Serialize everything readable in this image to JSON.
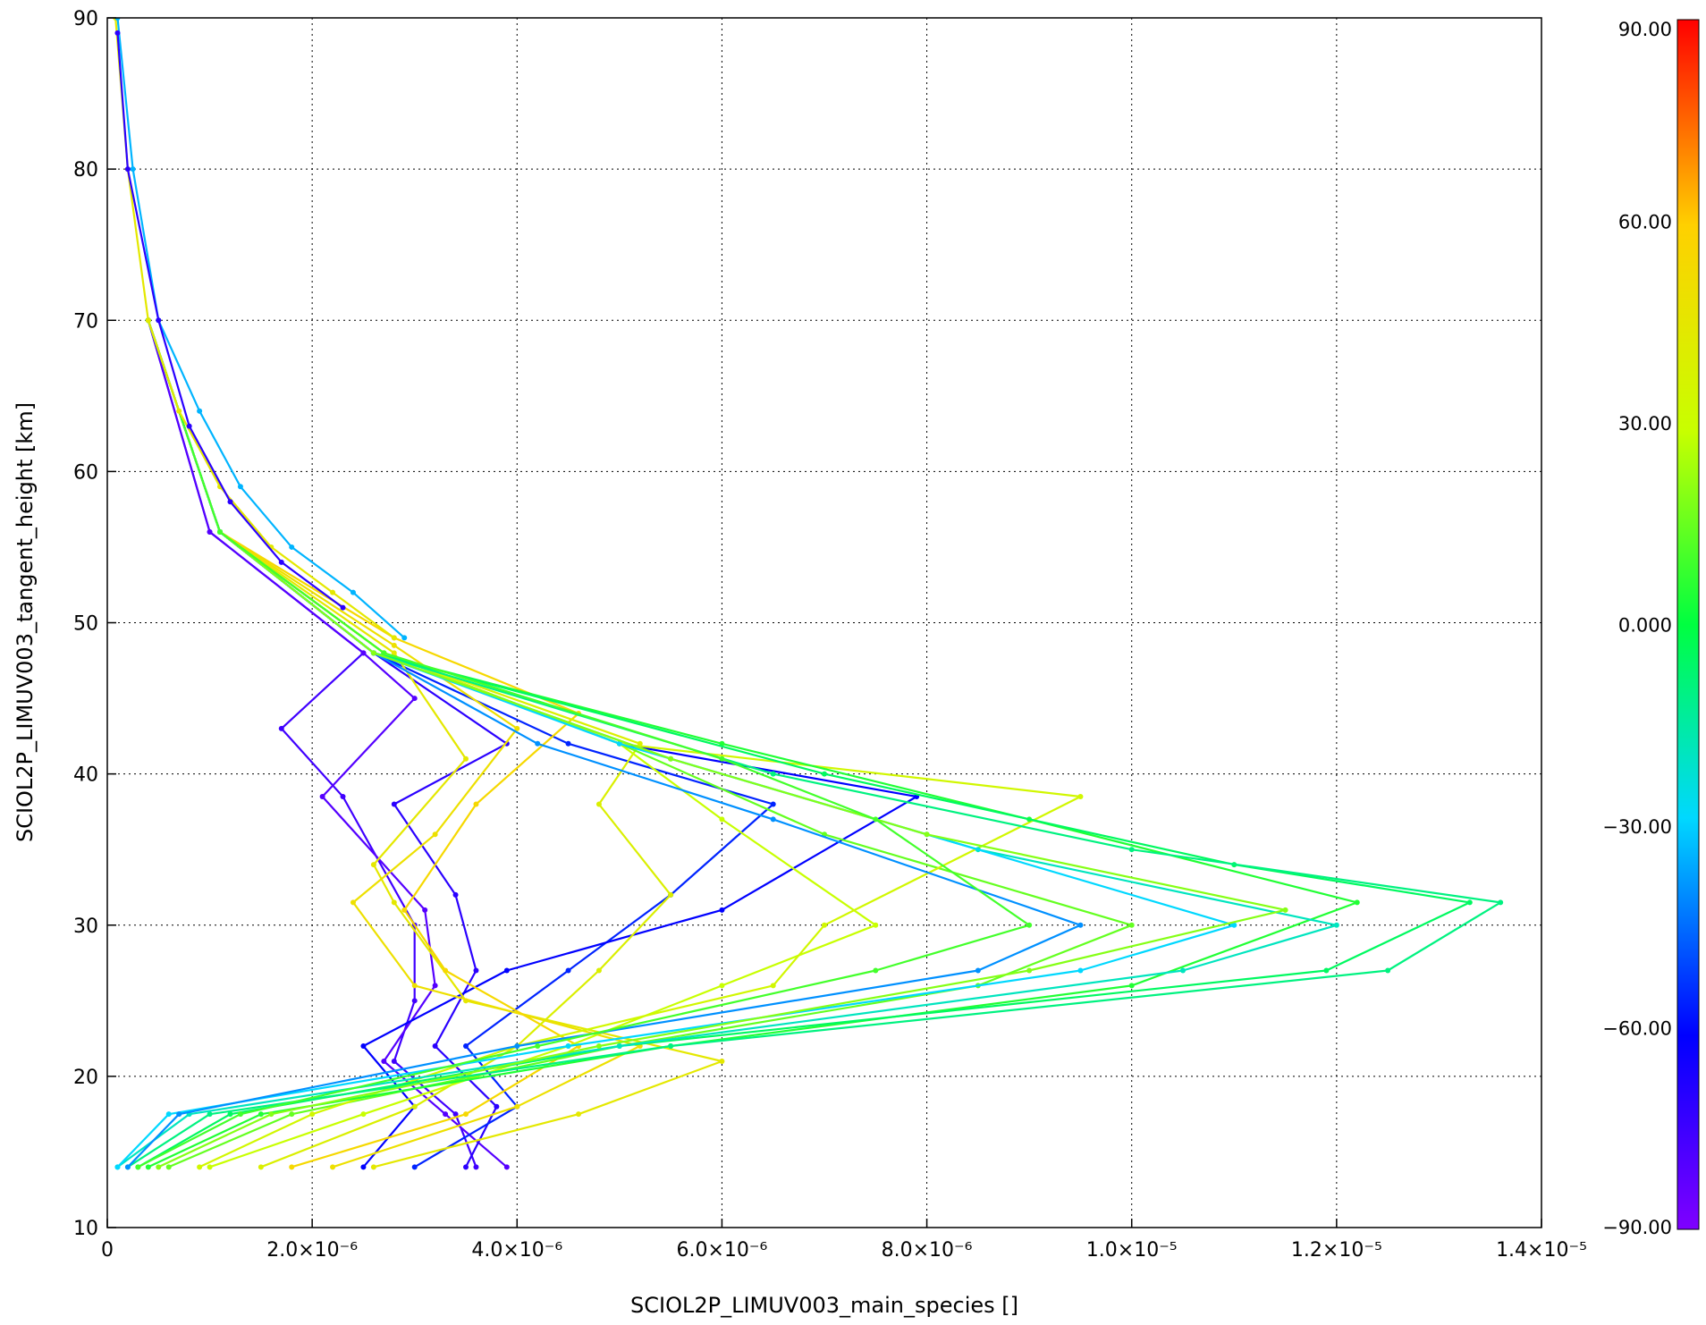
{
  "chart_data": {
    "type": "line",
    "title": "",
    "xlabel": "SCIOL2P_LIMUV003_main_species []",
    "ylabel": "SCIOL2P_LIMUV003_tangent_height [km]",
    "xlim": [
      0,
      1.4e-05
    ],
    "ylim": [
      10,
      90
    ],
    "grid": true,
    "x_tick_labels": [
      "0",
      "2.0×10⁻⁶",
      "4.0×10⁻⁶",
      "6.0×10⁻⁶",
      "8.0×10⁻⁶",
      "1.0×10⁻⁵",
      "1.2×10⁻⁵",
      "1.4×10⁻⁵"
    ],
    "x_ticks": [
      0,
      2e-06,
      4e-06,
      6e-06,
      8e-06,
      1e-05,
      1.2e-05,
      1.4e-05
    ],
    "y_tick_labels": [
      "10",
      "20",
      "30",
      "40",
      "50",
      "60",
      "70",
      "80",
      "90"
    ],
    "y_ticks": [
      10,
      20,
      30,
      40,
      50,
      60,
      70,
      80,
      90
    ],
    "colorbar": {
      "min": -90,
      "max": 90,
      "tick_values": [
        90,
        60,
        30,
        0,
        -30,
        -60,
        -90
      ],
      "tick_labels": [
        "90.00",
        "60.00",
        "30.00",
        "0.000",
        "−30.00",
        "−60.00",
        "−90.00"
      ],
      "colormap": [
        "#7f00ff",
        "#0000ff",
        "#00d8ff",
        "#00ff40",
        "#c8ff00",
        "#ffd000",
        "#ff0000"
      ]
    },
    "series": [
      {
        "color_value": -75,
        "x": [
          3.6e-06,
          3.4e-06,
          2.8e-06,
          3e-06,
          3e-06,
          2.3e-06,
          1.7e-06,
          2.5e-06,
          1e-06,
          4e-07
        ],
        "y": [
          14,
          17.5,
          21,
          25,
          30,
          38.5,
          43,
          48,
          56,
          70
        ]
      },
      {
        "color_value": -80,
        "x": [
          3.9e-06,
          3.3e-06,
          2.7e-06,
          3.2e-06,
          3.1e-06,
          2.1e-06,
          3e-06,
          2.5e-06,
          1e-06,
          4e-07
        ],
        "y": [
          14,
          17.5,
          21,
          26,
          31,
          38.5,
          45,
          48,
          56,
          70
        ]
      },
      {
        "color_value": -70,
        "x": [
          3.5e-06,
          3.8e-06,
          3.2e-06,
          3.6e-06,
          3.4e-06,
          2.8e-06,
          3.9e-06,
          2.6e-06,
          1.1e-06,
          4e-07
        ],
        "y": [
          14,
          18,
          22,
          27,
          32,
          38,
          42,
          48,
          56,
          70
        ]
      },
      {
        "color_value": -55,
        "x": [
          3e-06,
          4e-06,
          3.5e-06,
          4.5e-06,
          5.5e-06,
          6.5e-06,
          4.5e-06,
          2.6e-06,
          1.1e-06,
          4e-07
        ],
        "y": [
          14,
          18,
          22,
          27,
          32,
          38,
          42,
          48,
          56,
          70
        ]
      },
      {
        "color_value": -60,
        "x": [
          2.5e-06,
          3e-06,
          2.5e-06,
          3.9e-06,
          6e-06,
          7.9e-06,
          5e-06,
          2.7e-06,
          1.1e-06,
          4e-07
        ],
        "y": [
          14,
          18,
          22,
          27,
          31,
          38.5,
          42,
          48,
          56,
          70
        ]
      },
      {
        "color_value": 45,
        "x": [
          2.6e-06,
          4.6e-06,
          6e-06,
          3.5e-06,
          2.8e-06,
          2.6e-06,
          3.5e-06,
          2.8e-06,
          1.1e-06,
          4e-07
        ],
        "y": [
          14,
          17.5,
          21,
          25,
          31.5,
          34,
          41,
          48,
          56,
          70
        ]
      },
      {
        "color_value": 50,
        "x": [
          2.2e-06,
          4e-06,
          5.2e-06,
          3e-06,
          2.4e-06,
          3.2e-06,
          4e-06,
          2.8e-06,
          1.1e-06,
          4e-07
        ],
        "y": [
          14,
          18,
          22,
          26,
          31.5,
          36,
          43,
          48.5,
          56,
          70
        ]
      },
      {
        "color_value": 55,
        "x": [
          1.8e-06,
          3.5e-06,
          4.6e-06,
          3.3e-06,
          2.9e-06,
          3.6e-06,
          4.6e-06,
          2.8e-06,
          1.1e-06,
          4e-07
        ],
        "y": [
          14,
          17.5,
          22,
          27,
          31,
          38,
          44,
          49,
          56,
          70
        ]
      },
      {
        "color_value": 40,
        "x": [
          1.5e-06,
          3e-06,
          4e-06,
          4.8e-06,
          5.5e-06,
          4.8e-06,
          5.2e-06,
          2.7e-06,
          1.1e-06,
          4e-07
        ],
        "y": [
          14,
          18,
          22,
          27,
          32,
          38,
          42,
          48,
          56,
          70
        ]
      },
      {
        "color_value": 30,
        "x": [
          1e-06,
          2.5e-06,
          4.5e-06,
          6e-06,
          7.5e-06,
          6e-06,
          5e-06,
          2.7e-06,
          1.1e-06,
          4e-07
        ],
        "y": [
          14,
          17.5,
          22,
          26,
          30,
          37,
          42,
          48,
          56,
          70
        ]
      },
      {
        "color_value": 15,
        "x": [
          6e-07,
          1.8e-06,
          5e-06,
          8.5e-06,
          1e-05,
          7e-06,
          5e-06,
          2.7e-06,
          1.1e-06,
          4e-07
        ],
        "y": [
          14,
          17.5,
          22,
          26,
          30,
          36,
          42,
          48,
          56,
          70
        ]
      },
      {
        "color_value": 35,
        "x": [
          9e-07,
          2e-06,
          4e-06,
          6.5e-06,
          7e-06,
          9.5e-06,
          5e-06,
          2.7e-06,
          1.1e-06,
          4e-07
        ],
        "y": [
          14,
          17.5,
          22,
          26,
          30,
          38.5,
          42,
          48,
          56,
          70
        ]
      },
      {
        "color_value": 5,
        "x": [
          4e-07,
          1.5e-06,
          5.5e-06,
          1e-05,
          1.22e-05,
          9e-06,
          6e-06,
          2.6e-06,
          1.1e-06,
          4e-07
        ],
        "y": [
          14,
          17.5,
          22,
          26,
          31.5,
          37,
          42,
          48,
          56,
          70
        ]
      },
      {
        "color_value": -5,
        "x": [
          3e-07,
          1.2e-06,
          5e-06,
          1.19e-05,
          1.33e-05,
          1.1e-05,
          7e-06,
          2.6e-06,
          1.1e-06,
          4e-07
        ],
        "y": [
          14,
          17.5,
          22,
          27,
          31.5,
          34,
          40,
          48,
          56,
          70
        ]
      },
      {
        "color_value": -10,
        "x": [
          2e-07,
          1e-06,
          5.5e-06,
          1.25e-05,
          1.36e-05,
          1e-05,
          6.5e-06,
          2.6e-06,
          1.1e-06,
          4e-07
        ],
        "y": [
          14,
          17.5,
          22,
          27,
          31.5,
          35,
          40,
          48,
          56,
          70
        ]
      },
      {
        "color_value": -20,
        "x": [
          1e-07,
          8e-07,
          5e-06,
          1.05e-05,
          1.2e-05,
          8.5e-06,
          5.5e-06,
          2.6e-06,
          1.1e-06,
          4e-07
        ],
        "y": [
          14,
          17.5,
          22,
          27,
          30,
          35,
          41,
          48,
          56,
          70
        ]
      },
      {
        "color_value": -30,
        "x": [
          1e-07,
          6e-07,
          4.5e-06,
          9.5e-06,
          1.1e-05,
          8e-06,
          5e-06,
          2.6e-06,
          1.1e-06,
          4e-07
        ],
        "y": [
          14,
          17.5,
          22,
          27,
          30,
          36,
          42,
          48,
          56,
          70
        ]
      },
      {
        "color_value": -40,
        "x": [
          2e-07,
          7e-07,
          4e-06,
          8.5e-06,
          9.5e-06,
          6.5e-06,
          4.2e-06,
          2.6e-06,
          1.1e-06,
          4e-07
        ],
        "y": [
          14,
          17.5,
          22,
          27,
          30,
          37,
          42,
          48,
          56,
          70
        ]
      },
      {
        "color_value": 20,
        "x": [
          5e-07,
          1.6e-06,
          4.8e-06,
          9e-06,
          1.15e-05,
          8e-06,
          5.5e-06,
          2.6e-06,
          1.1e-06,
          4e-07
        ],
        "y": [
          14,
          17.5,
          22,
          27,
          31,
          36,
          41,
          48,
          56,
          70
        ]
      },
      {
        "color_value": 10,
        "x": [
          3e-07,
          1.3e-06,
          4.2e-06,
          7.5e-06,
          9e-06,
          7.5e-06,
          6e-06,
          2.7e-06,
          1.1e-06,
          4e-07
        ],
        "y": [
          14,
          17.5,
          22,
          27,
          30,
          37,
          41,
          48,
          56,
          70
        ]
      },
      {
        "color_value": 45,
        "x": [
          8e-08,
          2e-07,
          4e-07,
          7e-07,
          1.1e-06,
          1.6e-06,
          2.2e-06,
          2.8e-06
        ],
        "y": [
          90,
          80,
          70,
          64,
          59,
          55,
          52,
          49
        ]
      },
      {
        "color_value": -35,
        "x": [
          1e-07,
          2.5e-07,
          5e-07,
          9e-07,
          1.3e-06,
          1.8e-06,
          2.4e-06,
          2.9e-06
        ],
        "y": [
          90,
          80,
          70,
          64,
          59,
          55,
          52,
          49
        ]
      },
      {
        "color_value": -70,
        "x": [
          1e-07,
          2e-07,
          5e-07,
          8e-07,
          1.2e-06,
          1.7e-06,
          2.3e-06
        ],
        "y": [
          89,
          80,
          70,
          63,
          58,
          54,
          51
        ]
      }
    ]
  }
}
